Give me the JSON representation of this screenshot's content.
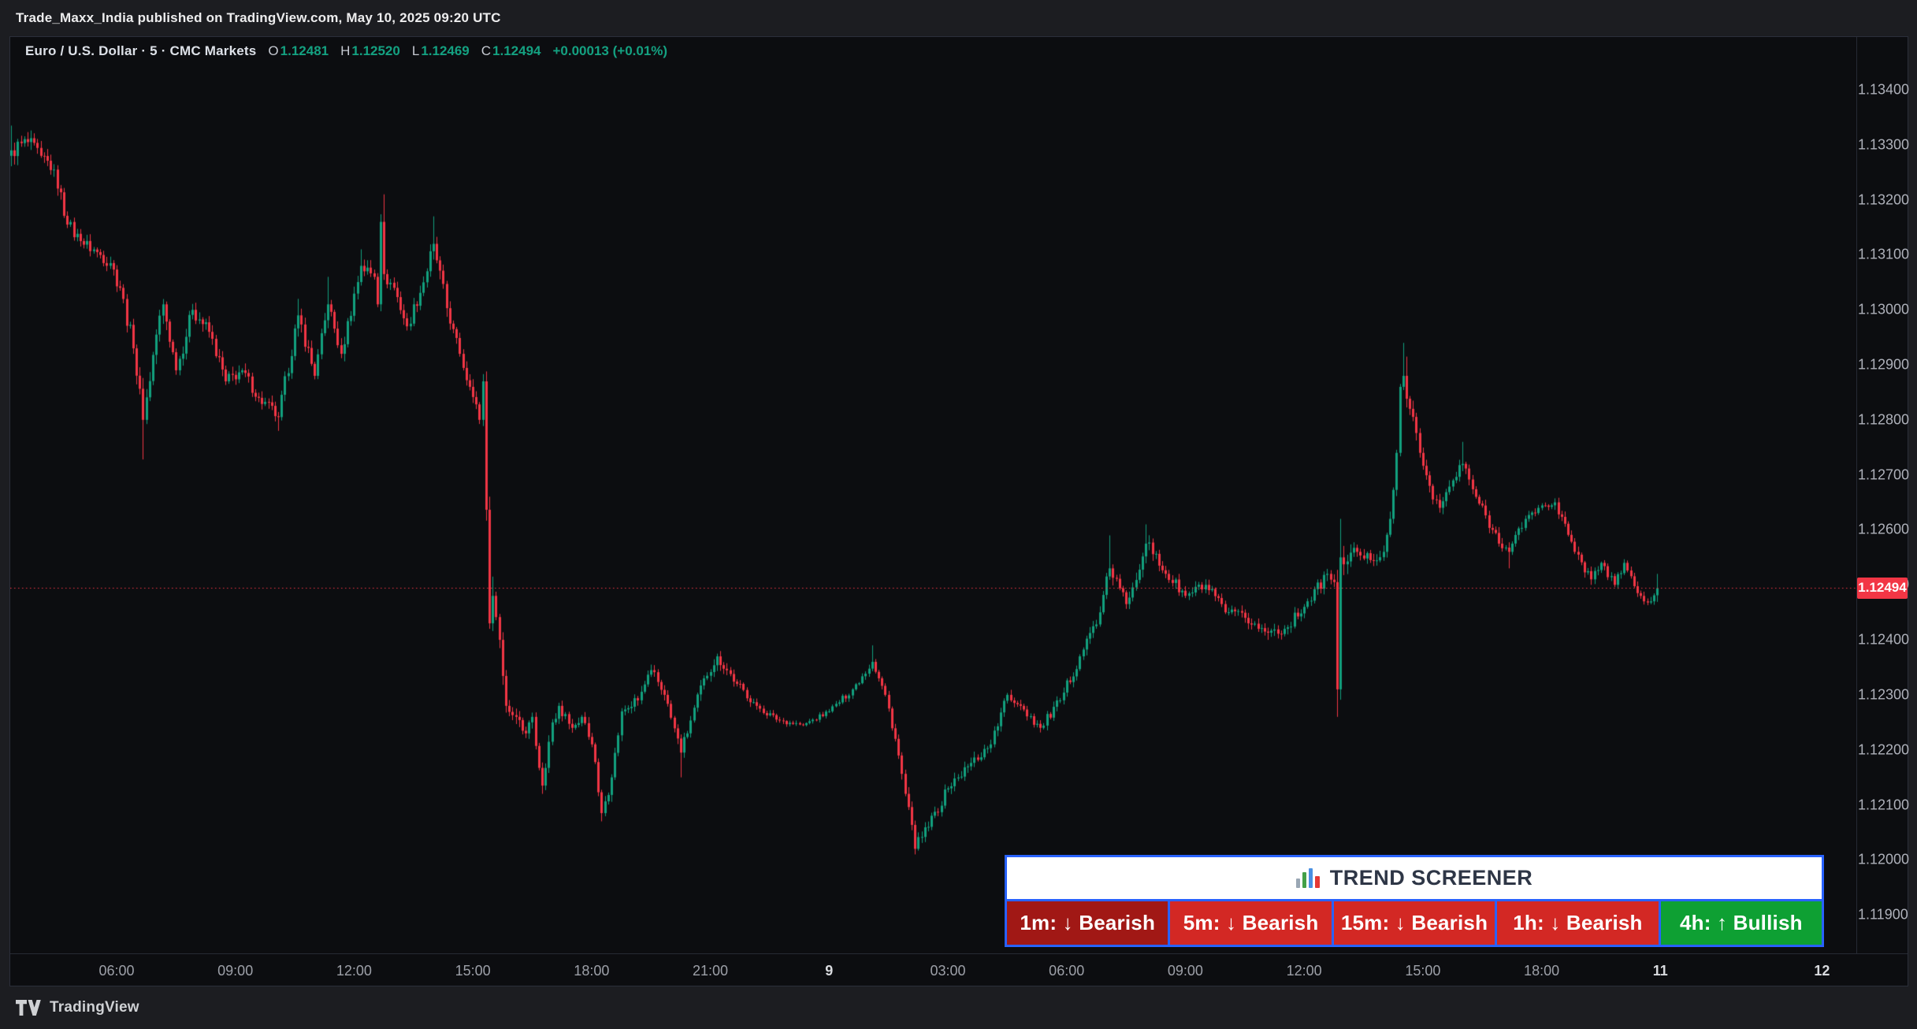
{
  "attribution": {
    "text": "Trade_Maxx_India published on TradingView.com, May 10, 2025 09:20 UTC"
  },
  "header": {
    "symbol_title": "Euro / U.S. Dollar · 5 · CMC Markets",
    "ohlc": [
      {
        "k": "O",
        "v": "1.12481"
      },
      {
        "k": "H",
        "v": "1.12520"
      },
      {
        "k": "L",
        "v": "1.12469"
      },
      {
        "k": "C",
        "v": "1.12494"
      }
    ],
    "change_text": "+0.00013 (+0.01%)"
  },
  "colors": {
    "up": "#12a07e",
    "down": "#f23645",
    "price_line": "#f23645",
    "price_tag_bg": "#f23645",
    "panel_border_blue": "#2962ff",
    "bearish_dark_red": "#a11815",
    "bearish_red": "#d32824",
    "bullish_green": "#0ea033",
    "axis_text": "#aeb1ba",
    "pane_bg": "#0c0d10",
    "frame_bg": "#1c1d21"
  },
  "price_axis": {
    "labels": [
      "1.13400",
      "1.13300",
      "1.13200",
      "1.13100",
      "1.13000",
      "1.12900",
      "1.12800",
      "1.12700",
      "1.12600",
      "1.12500",
      "1.12400",
      "1.12300",
      "1.12200",
      "1.12100",
      "1.12000",
      "1.11900"
    ],
    "last_price_label": "1.12494"
  },
  "time_axis": {
    "labels": [
      {
        "text": "06:00",
        "bar": 32,
        "day": false
      },
      {
        "text": "09:00",
        "bar": 68,
        "day": false
      },
      {
        "text": "12:00",
        "bar": 104,
        "day": false
      },
      {
        "text": "15:00",
        "bar": 140,
        "day": false
      },
      {
        "text": "18:00",
        "bar": 176,
        "day": false
      },
      {
        "text": "21:00",
        "bar": 212,
        "day": false
      },
      {
        "text": "9",
        "bar": 248,
        "day": true
      },
      {
        "text": "03:00",
        "bar": 284,
        "day": false
      },
      {
        "text": "06:00",
        "bar": 320,
        "day": false
      },
      {
        "text": "09:00",
        "bar": 356,
        "day": false
      },
      {
        "text": "12:00",
        "bar": 392,
        "day": false
      },
      {
        "text": "15:00",
        "bar": 428,
        "day": false
      },
      {
        "text": "18:00",
        "bar": 464,
        "day": false
      },
      {
        "text": "11",
        "bar": 500,
        "day": true
      },
      {
        "text": "12",
        "bar": 549,
        "day": true
      }
    ]
  },
  "trend_screener": {
    "title": "TREND SCREENER",
    "icon_name": "bar-chart-icon",
    "cells": [
      {
        "tf": "1m",
        "label": "1m: ↓ Bearish",
        "bg": "#a11815"
      },
      {
        "tf": "5m",
        "label": "5m: ↓ Bearish",
        "bg": "#d32824"
      },
      {
        "tf": "15m",
        "label": "15m: ↓ Bearish",
        "bg": "#d32824"
      },
      {
        "tf": "1h",
        "label": "1h: ↓ Bearish",
        "bg": "#d32824"
      },
      {
        "tf": "4h",
        "label": "4h: ↑ Bullish",
        "bg": "#0ea033"
      }
    ]
  },
  "footer": {
    "brand": "TradingView"
  },
  "chart_data": {
    "type": "candlestick",
    "title": "Euro / U.S. Dollar, 5 minute, CMC Markets",
    "interval_minutes": 5,
    "num_bars": 500,
    "first_bar_time_utc": "2025-05-08 03:20",
    "last_bar_time_utc": "2025-05-09 20:55",
    "up_color": "#12a07e",
    "down_color": "#f23645",
    "ylim": [
      1.1183,
      1.13496
    ],
    "grid": false,
    "price_line": {
      "value": 1.12494,
      "color": "#f23645",
      "style": "dotted"
    },
    "last_bar_ohlc": {
      "o": 1.12481,
      "h": 1.1252,
      "l": 1.12469,
      "c": 1.12494
    },
    "first_open": 1.1328,
    "keypoints_format": [
      "bar_index",
      "close_price",
      "volatility_pips"
    ],
    "keypoints": [
      [
        0,
        1.1329,
        2.2
      ],
      [
        5,
        1.13305,
        1.8
      ],
      [
        9,
        1.1328,
        1.5
      ],
      [
        13,
        1.13255,
        1.5
      ],
      [
        17,
        1.13155,
        1.8
      ],
      [
        21,
        1.13125,
        1.5
      ],
      [
        26,
        1.13105,
        1.4
      ],
      [
        30,
        1.13085,
        1.4
      ],
      [
        33,
        1.1304,
        1.8
      ],
      [
        37,
        1.1293,
        2.0
      ],
      [
        40,
        1.128,
        2.2
      ],
      [
        44,
        1.12955,
        2.0
      ],
      [
        46,
        1.1301,
        1.8
      ],
      [
        50,
        1.1289,
        1.8
      ],
      [
        55,
        1.13,
        1.7
      ],
      [
        60,
        1.1296,
        1.5
      ],
      [
        65,
        1.1287,
        1.5
      ],
      [
        70,
        1.1289,
        1.4
      ],
      [
        75,
        1.1284,
        1.4
      ],
      [
        81,
        1.12805,
        1.5
      ],
      [
        87,
        1.1299,
        1.8
      ],
      [
        92,
        1.1288,
        1.6
      ],
      [
        96,
        1.1301,
        1.8
      ],
      [
        100,
        1.1292,
        1.5
      ],
      [
        106,
        1.1308,
        1.8
      ],
      [
        110,
        1.1306,
        1.5
      ],
      [
        111,
        1.1301,
        1.5
      ],
      [
        112,
        1.1316,
        2.0
      ],
      [
        113,
        1.13065,
        2.0
      ],
      [
        116,
        1.1304,
        1.5
      ],
      [
        120,
        1.1297,
        1.5
      ],
      [
        125,
        1.1305,
        1.5
      ],
      [
        128,
        1.1312,
        1.8
      ],
      [
        133,
        1.12975,
        1.8
      ],
      [
        136,
        1.1292,
        1.5
      ],
      [
        139,
        1.1286,
        1.8
      ],
      [
        142,
        1.128,
        1.8
      ],
      [
        143,
        1.1287,
        1.5
      ],
      [
        145,
        1.1243,
        3.0
      ],
      [
        146,
        1.1248,
        2.0
      ],
      [
        148,
        1.124,
        1.8
      ],
      [
        150,
        1.1228,
        1.8
      ],
      [
        153,
        1.1226,
        1.5
      ],
      [
        156,
        1.1223,
        1.5
      ],
      [
        158,
        1.1226,
        1.4
      ],
      [
        161,
        1.12135,
        1.5
      ],
      [
        164,
        1.1225,
        1.4
      ],
      [
        166,
        1.1228,
        1.4
      ],
      [
        170,
        1.1224,
        1.3
      ],
      [
        173,
        1.1226,
        1.3
      ],
      [
        176,
        1.1221,
        1.4
      ],
      [
        179,
        1.12085,
        1.5
      ],
      [
        182,
        1.1215,
        1.4
      ],
      [
        185,
        1.1227,
        1.4
      ],
      [
        190,
        1.1229,
        1.2
      ],
      [
        194,
        1.12345,
        1.2
      ],
      [
        198,
        1.123,
        1.2
      ],
      [
        203,
        1.12195,
        1.3
      ],
      [
        210,
        1.1233,
        1.3
      ],
      [
        214,
        1.1237,
        1.2
      ],
      [
        220,
        1.1232,
        1.1
      ],
      [
        226,
        1.1228,
        0.9
      ],
      [
        232,
        1.12255,
        0.7
      ],
      [
        240,
        1.12245,
        0.5
      ],
      [
        248,
        1.1227,
        0.6
      ],
      [
        255,
        1.1231,
        0.8
      ],
      [
        261,
        1.1236,
        0.9
      ],
      [
        265,
        1.123,
        0.9
      ],
      [
        268,
        1.1222,
        1.1
      ],
      [
        271,
        1.1212,
        1.3
      ],
      [
        274,
        1.1202,
        1.5
      ],
      [
        278,
        1.1206,
        1.3
      ],
      [
        284,
        1.1213,
        1.2
      ],
      [
        290,
        1.1217,
        1.2
      ],
      [
        297,
        1.1221,
        1.2
      ],
      [
        302,
        1.123,
        1.2
      ],
      [
        306,
        1.1228,
        1.1
      ],
      [
        312,
        1.1224,
        1.1
      ],
      [
        318,
        1.1229,
        1.2
      ],
      [
        324,
        1.1237,
        1.3
      ],
      [
        330,
        1.1245,
        1.4
      ],
      [
        333,
        1.1253,
        1.6
      ],
      [
        338,
        1.12465,
        1.4
      ],
      [
        344,
        1.12575,
        1.6
      ],
      [
        350,
        1.1252,
        1.3
      ],
      [
        356,
        1.1248,
        1.3
      ],
      [
        362,
        1.125,
        1.2
      ],
      [
        368,
        1.1245,
        1.2
      ],
      [
        374,
        1.1244,
        1.2
      ],
      [
        380,
        1.12415,
        1.2
      ],
      [
        386,
        1.1242,
        1.2
      ],
      [
        392,
        1.1246,
        1.2
      ],
      [
        399,
        1.1252,
        1.3
      ],
      [
        401,
        1.12505,
        1.2
      ],
      [
        402,
        1.1231,
        2.6
      ],
      [
        403,
        1.1255,
        2.6
      ],
      [
        408,
        1.1256,
        1.3
      ],
      [
        412,
        1.12545,
        1.3
      ],
      [
        416,
        1.1256,
        1.4
      ],
      [
        418,
        1.1262,
        1.5
      ],
      [
        420,
        1.1274,
        1.8
      ],
      [
        421,
        1.1286,
        2.0
      ],
      [
        422,
        1.1288,
        2.0
      ],
      [
        424,
        1.1282,
        1.8
      ],
      [
        427,
        1.1274,
        1.5
      ],
      [
        430,
        1.1268,
        1.5
      ],
      [
        433,
        1.1264,
        1.3
      ],
      [
        437,
        1.1269,
        1.3
      ],
      [
        440,
        1.1272,
        1.3
      ],
      [
        444,
        1.1266,
        1.2
      ],
      [
        449,
        1.126,
        1.2
      ],
      [
        454,
        1.1256,
        1.2
      ],
      [
        459,
        1.1262,
        1.2
      ],
      [
        463,
        1.1264,
        1.1
      ],
      [
        468,
        1.1265,
        1.1
      ],
      [
        474,
        1.1256,
        1.1
      ],
      [
        479,
        1.1251,
        1.1
      ],
      [
        482,
        1.1254,
        1.0
      ],
      [
        486,
        1.125,
        1.0
      ],
      [
        489,
        1.1254,
        1.0
      ],
      [
        493,
        1.12485,
        1.0
      ],
      [
        495,
        1.1247,
        0.9
      ],
      [
        497,
        1.1247,
        0.9
      ],
      [
        498,
        1.12481,
        0.9
      ],
      [
        499,
        1.12494,
        0.9
      ]
    ],
    "wick_overrides": {
      "0": {
        "h": 1.13335
      },
      "40": {
        "l": 1.12728
      },
      "81": {
        "l": 1.1278
      },
      "87": {
        "h": 1.1302
      },
      "96": {
        "h": 1.1306
      },
      "106": {
        "h": 1.1311
      },
      "113": {
        "h": 1.1321
      },
      "128": {
        "h": 1.1317
      },
      "145": {
        "l": 1.1242
      },
      "146": {
        "h": 1.12515
      },
      "161": {
        "l": 1.1212
      },
      "179": {
        "l": 1.1207
      },
      "203": {
        "l": 1.1215
      },
      "261": {
        "h": 1.1239
      },
      "274": {
        "l": 1.1201
      },
      "333": {
        "h": 1.1259
      },
      "344": {
        "h": 1.1261
      },
      "381": {
        "l": 1.124
      },
      "402": {
        "l": 1.1226
      },
      "403": {
        "h": 1.1262
      },
      "422": {
        "h": 1.1294
      },
      "423": {
        "h": 1.12915
      },
      "440": {
        "h": 1.1276
      },
      "454": {
        "l": 1.1253
      },
      "479": {
        "l": 1.125
      },
      "499": {
        "h": 1.1252,
        "l": 1.12469
      }
    }
  }
}
